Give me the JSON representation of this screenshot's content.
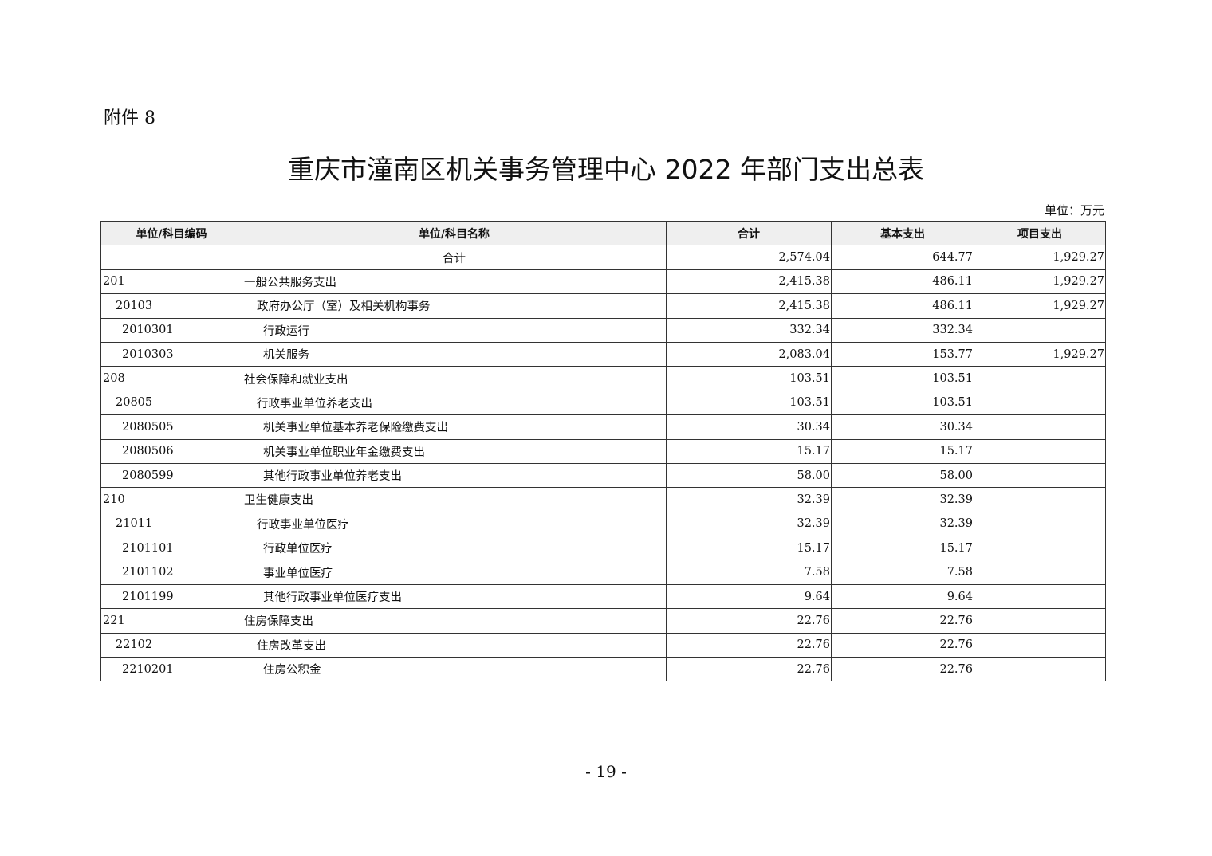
{
  "attachment_label": "附件 8",
  "title": "重庆市潼南区机关事务管理中心 2022 年部门支出总表",
  "unit_label": "单位：万元",
  "table": {
    "headers": [
      "单位/科目编码",
      "单位/科目名称",
      "合计",
      "基本支出",
      "项目支出"
    ],
    "rows": [
      {
        "code": "",
        "name": "合计",
        "level": 0,
        "total": "2,574.04",
        "basic": "644.77",
        "project": "1,929.27"
      },
      {
        "code": "201",
        "name": "一般公共服务支出",
        "level": 1,
        "total": "2,415.38",
        "basic": "486.11",
        "project": "1,929.27"
      },
      {
        "code": "20103",
        "name": "政府办公厅（室）及相关机构事务",
        "level": 2,
        "total": "2,415.38",
        "basic": "486.11",
        "project": "1,929.27"
      },
      {
        "code": "2010301",
        "name": "行政运行",
        "level": 3,
        "total": "332.34",
        "basic": "332.34",
        "project": ""
      },
      {
        "code": "2010303",
        "name": "机关服务",
        "level": 3,
        "total": "2,083.04",
        "basic": "153.77",
        "project": "1,929.27"
      },
      {
        "code": "208",
        "name": "社会保障和就业支出",
        "level": 1,
        "total": "103.51",
        "basic": "103.51",
        "project": ""
      },
      {
        "code": "20805",
        "name": "行政事业单位养老支出",
        "level": 2,
        "total": "103.51",
        "basic": "103.51",
        "project": ""
      },
      {
        "code": "2080505",
        "name": "机关事业单位基本养老保险缴费支出",
        "level": 3,
        "total": "30.34",
        "basic": "30.34",
        "project": ""
      },
      {
        "code": "2080506",
        "name": "机关事业单位职业年金缴费支出",
        "level": 3,
        "total": "15.17",
        "basic": "15.17",
        "project": ""
      },
      {
        "code": "2080599",
        "name": "其他行政事业单位养老支出",
        "level": 3,
        "total": "58.00",
        "basic": "58.00",
        "project": ""
      },
      {
        "code": "210",
        "name": "卫生健康支出",
        "level": 1,
        "total": "32.39",
        "basic": "32.39",
        "project": ""
      },
      {
        "code": "21011",
        "name": "行政事业单位医疗",
        "level": 2,
        "total": "32.39",
        "basic": "32.39",
        "project": ""
      },
      {
        "code": "2101101",
        "name": "行政单位医疗",
        "level": 3,
        "total": "15.17",
        "basic": "15.17",
        "project": ""
      },
      {
        "code": "2101102",
        "name": "事业单位医疗",
        "level": 3,
        "total": "7.58",
        "basic": "7.58",
        "project": ""
      },
      {
        "code": "2101199",
        "name": "其他行政事业单位医疗支出",
        "level": 3,
        "total": "9.64",
        "basic": "9.64",
        "project": ""
      },
      {
        "code": "221",
        "name": "住房保障支出",
        "level": 1,
        "total": "22.76",
        "basic": "22.76",
        "project": ""
      },
      {
        "code": "22102",
        "name": "住房改革支出",
        "level": 2,
        "total": "22.76",
        "basic": "22.76",
        "project": ""
      },
      {
        "code": "2210201",
        "name": "住房公积金",
        "level": 3,
        "total": "22.76",
        "basic": "22.76",
        "project": ""
      }
    ]
  },
  "page_number": "- 19 -"
}
